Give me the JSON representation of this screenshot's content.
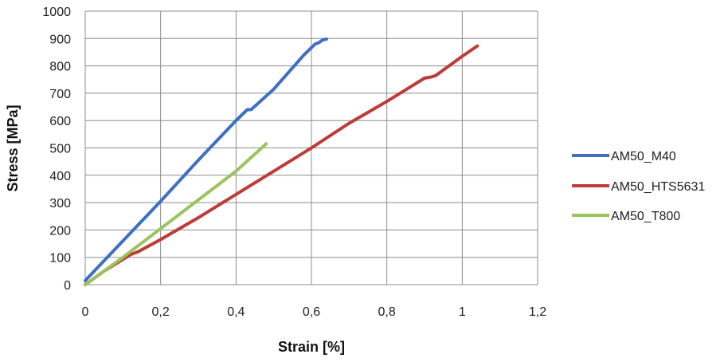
{
  "chart_data": {
    "type": "line",
    "title": "",
    "xlabel": "Strain [%]",
    "ylabel": "Stress [MPa]",
    "xlim": [
      0,
      1.2
    ],
    "ylim": [
      0,
      1000
    ],
    "x_ticks": [
      0,
      0.2,
      0.4,
      0.6,
      0.8,
      1,
      1.2
    ],
    "x_tick_labels": [
      "0",
      "0,2",
      "0,4",
      "0,6",
      "0,8",
      "1",
      "1,2"
    ],
    "y_ticks": [
      0,
      100,
      200,
      300,
      400,
      500,
      600,
      700,
      800,
      900,
      1000
    ],
    "y_tick_labels": [
      "0",
      "100",
      "200",
      "300",
      "400",
      "500",
      "600",
      "700",
      "800",
      "900",
      "1000"
    ],
    "grid": true,
    "legend_position": "right",
    "series": [
      {
        "name": "AM50_M40",
        "color": "#3F6FC4",
        "points": [
          [
            0.0,
            15
          ],
          [
            0.1,
            160
          ],
          [
            0.2,
            305
          ],
          [
            0.3,
            455
          ],
          [
            0.4,
            600
          ],
          [
            0.43,
            640
          ],
          [
            0.44,
            640
          ],
          [
            0.5,
            715
          ],
          [
            0.58,
            840
          ],
          [
            0.61,
            880
          ],
          [
            0.62,
            885
          ],
          [
            0.63,
            895
          ],
          [
            0.64,
            898
          ]
        ]
      },
      {
        "name": "AM50_HTS5631",
        "color": "#BE3B37",
        "points": [
          [
            0.0,
            0
          ],
          [
            0.05,
            50
          ],
          [
            0.12,
            110
          ],
          [
            0.14,
            120
          ],
          [
            0.2,
            165
          ],
          [
            0.3,
            245
          ],
          [
            0.4,
            330
          ],
          [
            0.5,
            415
          ],
          [
            0.6,
            500
          ],
          [
            0.7,
            590
          ],
          [
            0.8,
            670
          ],
          [
            0.9,
            755
          ],
          [
            0.92,
            760
          ],
          [
            0.93,
            765
          ],
          [
            1.0,
            835
          ],
          [
            1.04,
            873
          ]
        ]
      },
      {
        "name": "AM50_T800",
        "color": "#9BC35B",
        "points": [
          [
            0.0,
            0
          ],
          [
            0.1,
            100
          ],
          [
            0.2,
            205
          ],
          [
            0.3,
            310
          ],
          [
            0.4,
            415
          ],
          [
            0.48,
            515
          ]
        ]
      }
    ]
  }
}
